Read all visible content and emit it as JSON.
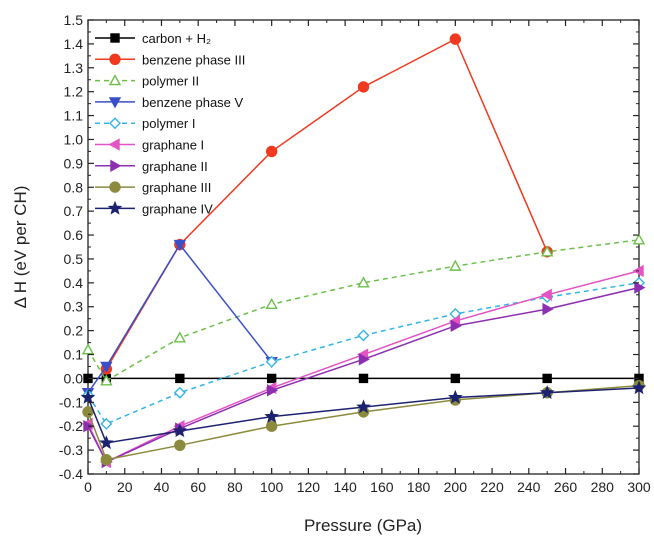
{
  "chart_data": {
    "type": "line",
    "title": "",
    "xlabel": "Pressure (GPa)",
    "ylabel": "Δ H (eV per CH)",
    "xlim": [
      0,
      300
    ],
    "ylim": [
      -0.4,
      1.5
    ],
    "xticks": [
      0,
      20,
      40,
      60,
      80,
      100,
      120,
      140,
      160,
      180,
      200,
      220,
      240,
      260,
      280,
      300
    ],
    "yticks": [
      -0.4,
      -0.3,
      -0.2,
      -0.1,
      0.0,
      0.1,
      0.2,
      0.3,
      0.4,
      0.5,
      0.6,
      0.7,
      0.8,
      0.9,
      1.0,
      1.1,
      1.2,
      1.3,
      1.4,
      1.5
    ],
    "ytick_labels": [
      "-0.4",
      "-0.3",
      "-0.2",
      "-0.1",
      "0.0",
      "0.1",
      "0.2",
      "0.3",
      "0.4",
      "0.5",
      "0.6",
      "0.7",
      "0.8",
      "0.9",
      "1.0",
      "1.1",
      "1.2",
      "1.3",
      "1.4",
      "1.5"
    ],
    "grid": false,
    "legend_position": "top-left",
    "series": [
      {
        "name": "carbon + H₂",
        "color": "#000000",
        "marker": "square",
        "filled": true,
        "dash": false,
        "x": [
          0,
          10,
          50,
          100,
          150,
          200,
          250,
          300
        ],
        "y": [
          0,
          0,
          0,
          0,
          0,
          0,
          0,
          0
        ]
      },
      {
        "name": "benzene phase III",
        "color": "#f0391f",
        "marker": "circle",
        "filled": true,
        "dash": false,
        "x": [
          10,
          50,
          100,
          150,
          200,
          250
        ],
        "y": [
          0.04,
          0.56,
          0.95,
          1.22,
          1.42,
          0.53
        ]
      },
      {
        "name": "polymer II",
        "color": "#6cc04a",
        "marker": "triangle-up",
        "filled": false,
        "dash": true,
        "x": [
          0,
          10,
          50,
          100,
          150,
          200,
          250,
          300
        ],
        "y": [
          0.12,
          -0.01,
          0.17,
          0.31,
          0.4,
          0.47,
          0.53,
          0.58
        ]
      },
      {
        "name": "benzene phase V",
        "color": "#3b4fc9",
        "marker": "triangle-down",
        "filled": true,
        "dash": false,
        "x": [
          0,
          10,
          50,
          100
        ],
        "y": [
          -0.06,
          0.05,
          0.56,
          0.07
        ]
      },
      {
        "name": "polymer I",
        "color": "#33b5e5",
        "marker": "diamond",
        "filled": false,
        "dash": true,
        "x": [
          0,
          10,
          50,
          100,
          150,
          200,
          250,
          300
        ],
        "y": [
          -0.07,
          -0.19,
          -0.06,
          0.07,
          0.18,
          0.27,
          0.34,
          0.4
        ]
      },
      {
        "name": "graphane I",
        "color": "#e354c4",
        "marker": "triangle-left",
        "filled": true,
        "dash": false,
        "x": [
          0,
          10,
          50,
          100,
          150,
          200,
          250,
          300
        ],
        "y": [
          -0.19,
          -0.35,
          -0.2,
          -0.04,
          0.1,
          0.24,
          0.35,
          0.45
        ]
      },
      {
        "name": "graphane II",
        "color": "#8d2fb0",
        "marker": "triangle-right",
        "filled": true,
        "dash": false,
        "x": [
          0,
          10,
          50,
          100,
          150,
          200,
          250,
          300
        ],
        "y": [
          -0.2,
          -0.35,
          -0.21,
          -0.05,
          0.08,
          0.22,
          0.29,
          0.38
        ]
      },
      {
        "name": "graphane III",
        "color": "#8c8a3d",
        "marker": "circle",
        "filled": true,
        "dash": false,
        "x": [
          0,
          10,
          50,
          100,
          150,
          200,
          250,
          300
        ],
        "y": [
          -0.14,
          -0.34,
          -0.28,
          -0.2,
          -0.14,
          -0.09,
          -0.06,
          -0.03
        ]
      },
      {
        "name": "graphane IV",
        "color": "#1d2270",
        "marker": "star",
        "filled": true,
        "dash": false,
        "x": [
          0,
          10,
          50,
          100,
          150,
          200,
          250,
          300
        ],
        "y": [
          -0.08,
          -0.27,
          -0.22,
          -0.16,
          -0.12,
          -0.08,
          -0.06,
          -0.04
        ]
      }
    ]
  }
}
